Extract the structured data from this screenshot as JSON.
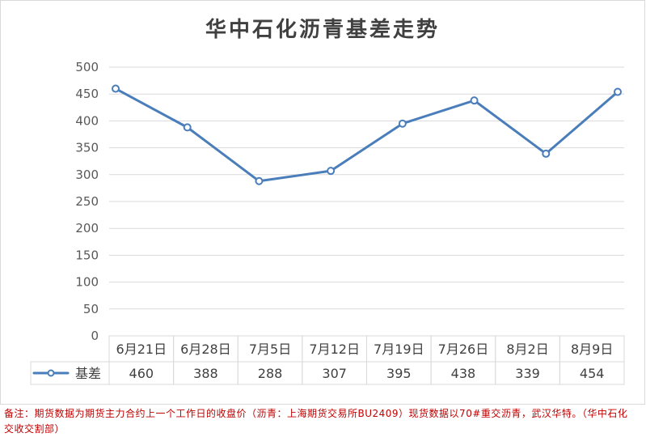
{
  "chart_data": {
    "type": "line",
    "title": "华中石化沥青基差走势",
    "categories": [
      "6月21日",
      "6月28日",
      "7月5日",
      "7月12日",
      "7月19日",
      "7月26日",
      "8月2日",
      "8月9日"
    ],
    "series": [
      {
        "name": "基差",
        "values": [
          460,
          388,
          288,
          307,
          395,
          438,
          339,
          454
        ],
        "color": "#4a7ebb"
      }
    ],
    "ylim": [
      0,
      500
    ],
    "yticks": [
      0,
      50,
      100,
      150,
      200,
      250,
      300,
      350,
      400,
      450,
      500
    ],
    "grid": true,
    "legend": "bottom-left",
    "data_table": true
  },
  "note": {
    "lines": [
      "备注：期货数据为期货主力合约上一个工作日的收盘价（沥青：上海期货交易所BU2409）现货数据以70#重交沥青，武汉华特。（华中石化",
      "交收交割部）"
    ],
    "color": "#c00000"
  }
}
